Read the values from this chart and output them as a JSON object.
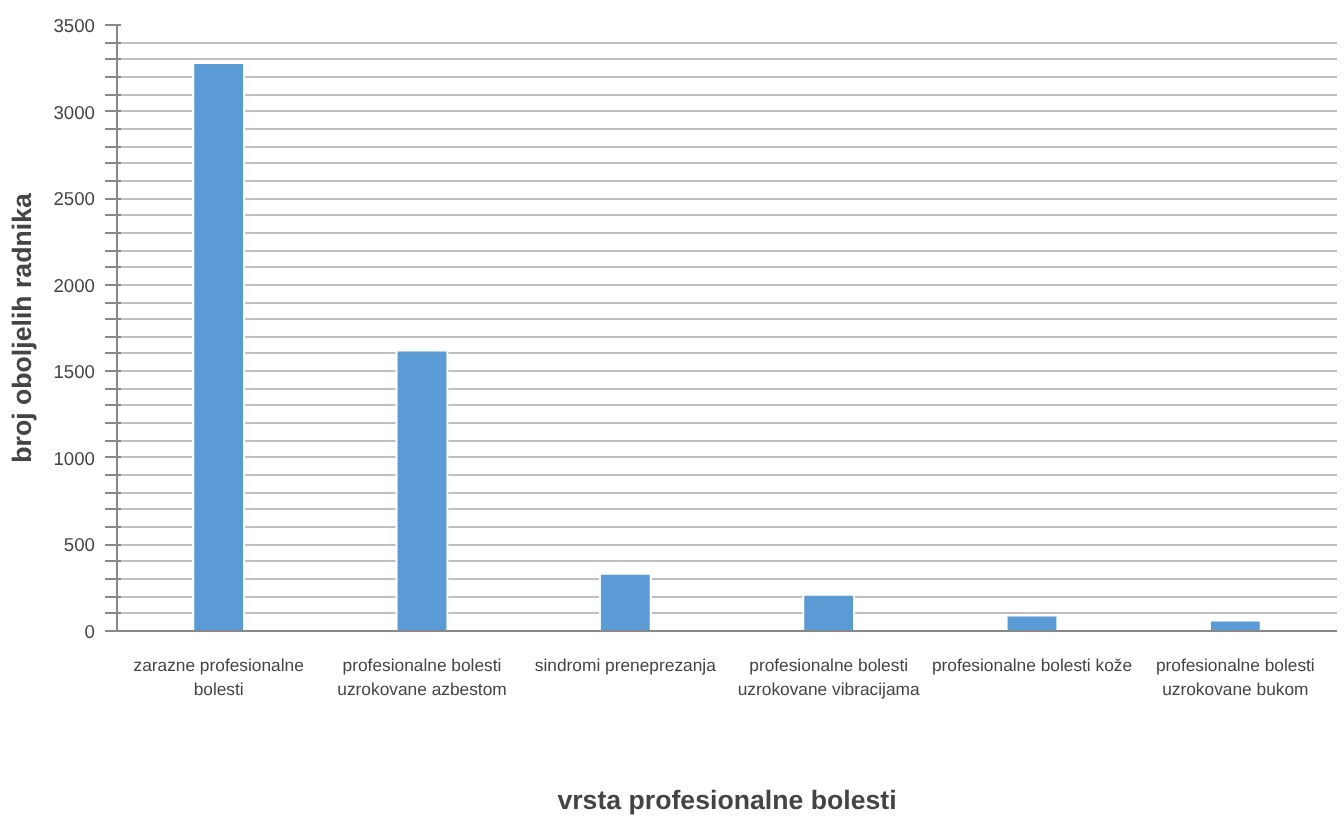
{
  "chart_data": {
    "type": "bar",
    "xlabel": "vrsta profesionalne bolesti",
    "ylabel": "broj oboljelih radnika",
    "categories": [
      "zarazne profesionalne bolesti",
      "profesionalne bolesti uzrokovane azbestom",
      "sindromi preneprezanja",
      "profesionalne bolesti uzrokovane vibracijama",
      "profesionalne bolesti kože",
      "profesionalne bolesti uzrokovane bukom"
    ],
    "values": [
      3280,
      1620,
      330,
      210,
      90,
      60
    ],
    "color": "#5b9bd5",
    "ylim": [
      0,
      3500
    ],
    "yticks": [
      0,
      {
        "value": 100,
        "label": null
      },
      {
        "value": 200,
        "label": null
      },
      {
        "value": 300,
        "label": null
      },
      {
        "value": 400,
        "label": null
      },
      500,
      {
        "value": 600,
        "label": null
      },
      {
        "value": 700,
        "label": null
      },
      {
        "value": 800,
        "label": null
      },
      {
        "value": 900,
        "label": null
      },
      1000,
      {
        "value": 1100,
        "label": null
      },
      {
        "value": 1200,
        "label": null
      },
      {
        "value": 1300,
        "label": null
      },
      {
        "value": 1400,
        "label": null
      },
      1500,
      {
        "value": 1600,
        "label": null
      },
      {
        "value": 1700,
        "label": null
      },
      {
        "value": 1800,
        "label": null
      },
      {
        "value": 1900,
        "label": null
      },
      2000,
      {
        "value": 2100,
        "label": null
      },
      {
        "value": 2200,
        "label": null
      },
      {
        "value": 2300,
        "label": null
      },
      {
        "value": 2400,
        "label": null
      },
      2500,
      {
        "value": 2600,
        "label": null
      },
      {
        "value": 2700,
        "label": null
      },
      {
        "value": 2800,
        "label": null
      },
      {
        "value": 2900,
        "label": null
      },
      3000,
      {
        "value": 3100,
        "label": null
      },
      {
        "value": 3200,
        "label": null
      },
      {
        "value": 3300,
        "label": null
      },
      {
        "value": 3400,
        "label": null
      },
      3500
    ],
    "grid": "y"
  }
}
